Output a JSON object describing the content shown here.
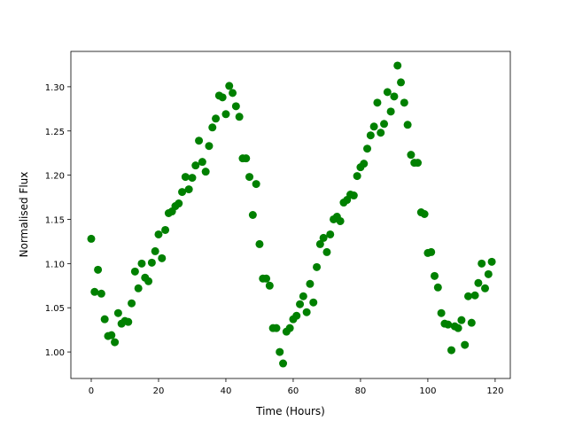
{
  "chart_data": {
    "type": "scatter",
    "title": "",
    "xlabel": "Time (Hours)",
    "ylabel": "Normalised Flux",
    "xlim": [
      -6.05,
      124.5
    ],
    "ylim": [
      0.97,
      1.34
    ],
    "xticks": [
      0,
      20,
      40,
      60,
      80,
      100,
      120
    ],
    "xtick_labels": [
      "0",
      "20",
      "40",
      "60",
      "80",
      "100",
      "120"
    ],
    "yticks": [
      1.0,
      1.05,
      1.1,
      1.15,
      1.2,
      1.25,
      1.3
    ],
    "ytick_labels": [
      "1.00",
      "1.05",
      "1.10",
      "1.15",
      "1.20",
      "1.25",
      "1.30"
    ],
    "grid": false,
    "marker_color": "#008000",
    "x": [
      0,
      1,
      2,
      3,
      4,
      5,
      6,
      7,
      8,
      9,
      10,
      11,
      12,
      13,
      14,
      15,
      16,
      17,
      18,
      19,
      20,
      21,
      22,
      23,
      24,
      25,
      26,
      27,
      28,
      29,
      30,
      31,
      32,
      33,
      34,
      35,
      36,
      37,
      38,
      39,
      40,
      41,
      42,
      43,
      44,
      45,
      46,
      47,
      48,
      49,
      50,
      51,
      52,
      53,
      54,
      55,
      56,
      57,
      58,
      59,
      60,
      61,
      62,
      63,
      64,
      65,
      66,
      67,
      68,
      69,
      70,
      71,
      72,
      73,
      74,
      75,
      76,
      77,
      78,
      79,
      80,
      81,
      82,
      83,
      84,
      85,
      86,
      87,
      88,
      89,
      90,
      91,
      92,
      93,
      94,
      95,
      96,
      97,
      98,
      99,
      100,
      101,
      102,
      103,
      104,
      105,
      106,
      107,
      108,
      109,
      110,
      111,
      112,
      113,
      114,
      115,
      116,
      117,
      118,
      119
    ],
    "y": [
      1.128,
      1.068,
      1.093,
      1.066,
      1.037,
      1.018,
      1.019,
      1.011,
      1.044,
      1.032,
      1.035,
      1.034,
      1.055,
      1.091,
      1.072,
      1.1,
      1.084,
      1.08,
      1.101,
      1.114,
      1.133,
      1.106,
      1.138,
      1.157,
      1.159,
      1.165,
      1.168,
      1.181,
      1.198,
      1.184,
      1.197,
      1.211,
      1.239,
      1.215,
      1.204,
      1.233,
      1.254,
      1.264,
      1.29,
      1.288,
      1.269,
      1.301,
      1.293,
      1.278,
      1.266,
      1.219,
      1.219,
      1.198,
      1.155,
      1.19,
      1.122,
      1.083,
      1.083,
      1.075,
      1.027,
      1.027,
      1.0,
      0.987,
      1.023,
      1.027,
      1.037,
      1.041,
      1.054,
      1.063,
      1.045,
      1.077,
      1.056,
      1.096,
      1.122,
      1.129,
      1.113,
      1.133,
      1.15,
      1.153,
      1.148,
      1.169,
      1.172,
      1.178,
      1.177,
      1.199,
      1.209,
      1.213,
      1.23,
      1.245,
      1.255,
      1.282,
      1.248,
      1.258,
      1.294,
      1.272,
      1.289,
      1.324,
      1.305,
      1.282,
      1.257,
      1.223,
      1.214,
      1.214,
      1.158,
      1.156,
      1.112,
      1.113,
      1.086,
      1.073,
      1.044,
      1.032,
      1.031,
      1.002,
      1.029,
      1.027,
      1.036,
      1.008,
      1.063,
      1.033,
      1.064,
      1.078,
      1.1,
      1.072,
      1.088,
      1.102
    ]
  }
}
